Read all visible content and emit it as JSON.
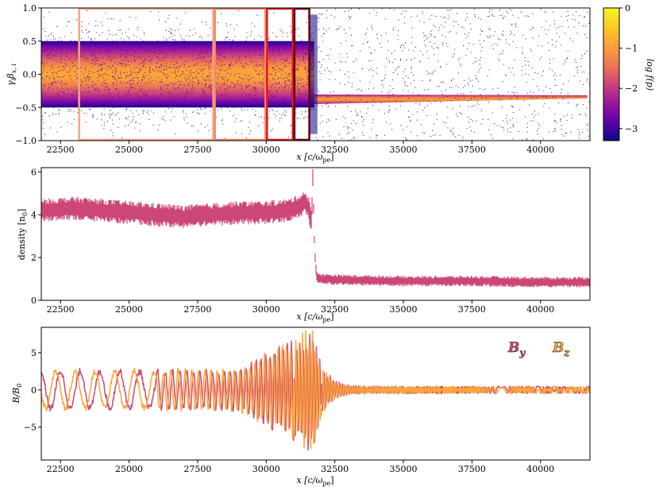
{
  "chart_data": [
    {
      "type": "heatmap",
      "xlabel": "x [c/ω",
      "xlabel_sub": "pe",
      "xlabel_tail": "]",
      "ylabel": "γ",
      "ylabel_rest": "β",
      "ylabel_sub1": "i",
      "ylabel_sub2": "x, i",
      "xlim": [
        21800,
        41800
      ],
      "ylim": [
        -1.0,
        1.0
      ],
      "xticks": [
        "22500",
        "25000",
        "27500",
        "30000",
        "32500",
        "35000",
        "37500",
        "40000"
      ],
      "xtick_values": [
        22500,
        25000,
        27500,
        30000,
        32500,
        35000,
        37500,
        40000
      ],
      "yticks": [
        "1.0",
        "0.5",
        "0.0",
        "−0.5",
        "−1.0"
      ],
      "ytick_values": [
        1.0,
        0.5,
        0.0,
        -0.5,
        -1.0
      ],
      "shock_x": 31750,
      "upstream_beam_v": -0.34,
      "colorbar": {
        "label": "log f(p)",
        "range": [
          -3.3,
          0
        ],
        "ticks": [
          "0",
          "−1",
          "−2",
          "−3"
        ],
        "tick_values": [
          0,
          -1,
          -2,
          -3
        ],
        "colors": [
          "#0d0887",
          "#5c01a6",
          "#9c179e",
          "#cc4778",
          "#ed7953",
          "#fb9f3a",
          "#fdca26",
          "#f0f921"
        ]
      },
      "regions": [
        {
          "x0": 23150,
          "x1": 28100,
          "color": "#f4a582"
        },
        {
          "x0": 28100,
          "x1": 30000,
          "color": "#ef8a62"
        },
        {
          "x0": 30000,
          "x1": 31000,
          "color": "#e31a1c"
        },
        {
          "x0": 31000,
          "x1": 31600,
          "color": "#67000d"
        }
      ]
    },
    {
      "type": "line",
      "xlabel": "x [c/ω",
      "xlabel_sub": "pe",
      "xlabel_tail": "]",
      "ylabel": "density [n",
      "ylabel_sub": "0",
      "ylabel_tail": "]",
      "xlim": [
        21800,
        41800
      ],
      "ylim": [
        0,
        6.2
      ],
      "xticks": [
        "22500",
        "25000",
        "27500",
        "30000",
        "32500",
        "35000",
        "37500",
        "40000"
      ],
      "xtick_values": [
        22500,
        25000,
        27500,
        30000,
        32500,
        35000,
        37500,
        40000
      ],
      "yticks": [
        "6",
        "4",
        "2",
        "0"
      ],
      "ytick_values": [
        6,
        4,
        2,
        0
      ],
      "series": [
        {
          "color": "#cc4778",
          "x": [
            21800,
            23000,
            24000,
            25000,
            26000,
            27000,
            28000,
            29000,
            30000,
            30800,
            31200,
            31400,
            31550,
            31650,
            31700,
            31750,
            31800,
            31850,
            32000,
            33000,
            35000,
            37500,
            40000,
            41800
          ],
          "y": [
            4.2,
            4.3,
            4.2,
            4.1,
            4.0,
            3.9,
            4.0,
            4.1,
            4.1,
            4.2,
            4.4,
            4.6,
            4.3,
            3.6,
            5.9,
            3.0,
            1.6,
            1.1,
            1.0,
            0.95,
            0.9,
            0.9,
            0.85,
            0.85
          ],
          "noise_amplitude": 0.55
        }
      ]
    },
    {
      "type": "line",
      "xlabel": "x [c/ω",
      "xlabel_sub": "pe",
      "xlabel_tail": "]",
      "ylabel": "B/B",
      "ylabel_sub": "0",
      "xlim": [
        21800,
        41800
      ],
      "ylim": [
        -9.4,
        8.4
      ],
      "xticks": [
        "22500",
        "25000",
        "27500",
        "30000",
        "32500",
        "35000",
        "37500",
        "40000"
      ],
      "xtick_values": [
        22500,
        25000,
        27500,
        30000,
        32500,
        35000,
        37500,
        40000
      ],
      "yticks": [
        "5",
        "0",
        "−5"
      ],
      "ytick_values": [
        5,
        0,
        -5
      ],
      "series": [
        {
          "name": "B",
          "sub": "y",
          "color": "#cc4778",
          "amp_upstream": 2.5,
          "amp_peak": 7.5,
          "amp_down": 0.45,
          "wavelength": 720,
          "phase": 0.0
        },
        {
          "name": "B",
          "sub": "z",
          "color": "#fca636",
          "amp_upstream": 2.5,
          "amp_peak": 7.5,
          "amp_down": 0.45,
          "wavelength": 720,
          "phase": 1.57
        }
      ]
    }
  ]
}
